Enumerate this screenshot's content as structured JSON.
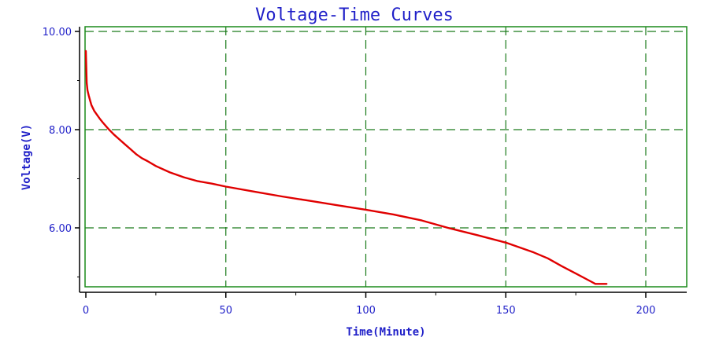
{
  "chart_data": {
    "type": "line",
    "title": "Voltage-Time Curves",
    "xlabel": "Time(Minute)",
    "ylabel": "Voltage(V)",
    "xlim": [
      0,
      215
    ],
    "ylim": [
      4.8,
      10.05
    ],
    "x_ticks": [
      0,
      50,
      100,
      150,
      200
    ],
    "x_tick_labels": [
      "0",
      "50",
      "100",
      "150",
      "200"
    ],
    "y_ticks": [
      6,
      8,
      10
    ],
    "y_tick_labels": [
      "6.00",
      "8.00",
      "10.00"
    ],
    "grid": true,
    "grid_style": "dashed",
    "colors": {
      "title": "#1f1fc8",
      "axis_text": "#1f1fc8",
      "grid": "#1a7a1a",
      "frame": "#1a8a1a",
      "series": "#e00000"
    },
    "series": [
      {
        "x": [
          0,
          0.3,
          0.6,
          1,
          1.5,
          2,
          3,
          4,
          5,
          6,
          8,
          10,
          12,
          14,
          16,
          18,
          20,
          22,
          25,
          30,
          35,
          40,
          45,
          50,
          60,
          70,
          80,
          90,
          100,
          110,
          120,
          130,
          140,
          150,
          160,
          165,
          170,
          175,
          180,
          182,
          186
        ],
        "y": [
          9.6,
          8.95,
          8.8,
          8.7,
          8.6,
          8.5,
          8.38,
          8.3,
          8.22,
          8.15,
          8.02,
          7.9,
          7.8,
          7.7,
          7.6,
          7.5,
          7.42,
          7.36,
          7.26,
          7.13,
          7.03,
          6.95,
          6.9,
          6.84,
          6.74,
          6.64,
          6.55,
          6.46,
          6.37,
          6.27,
          6.15,
          5.99,
          5.85,
          5.7,
          5.5,
          5.38,
          5.22,
          5.07,
          4.92,
          4.86,
          4.86
        ]
      }
    ]
  }
}
